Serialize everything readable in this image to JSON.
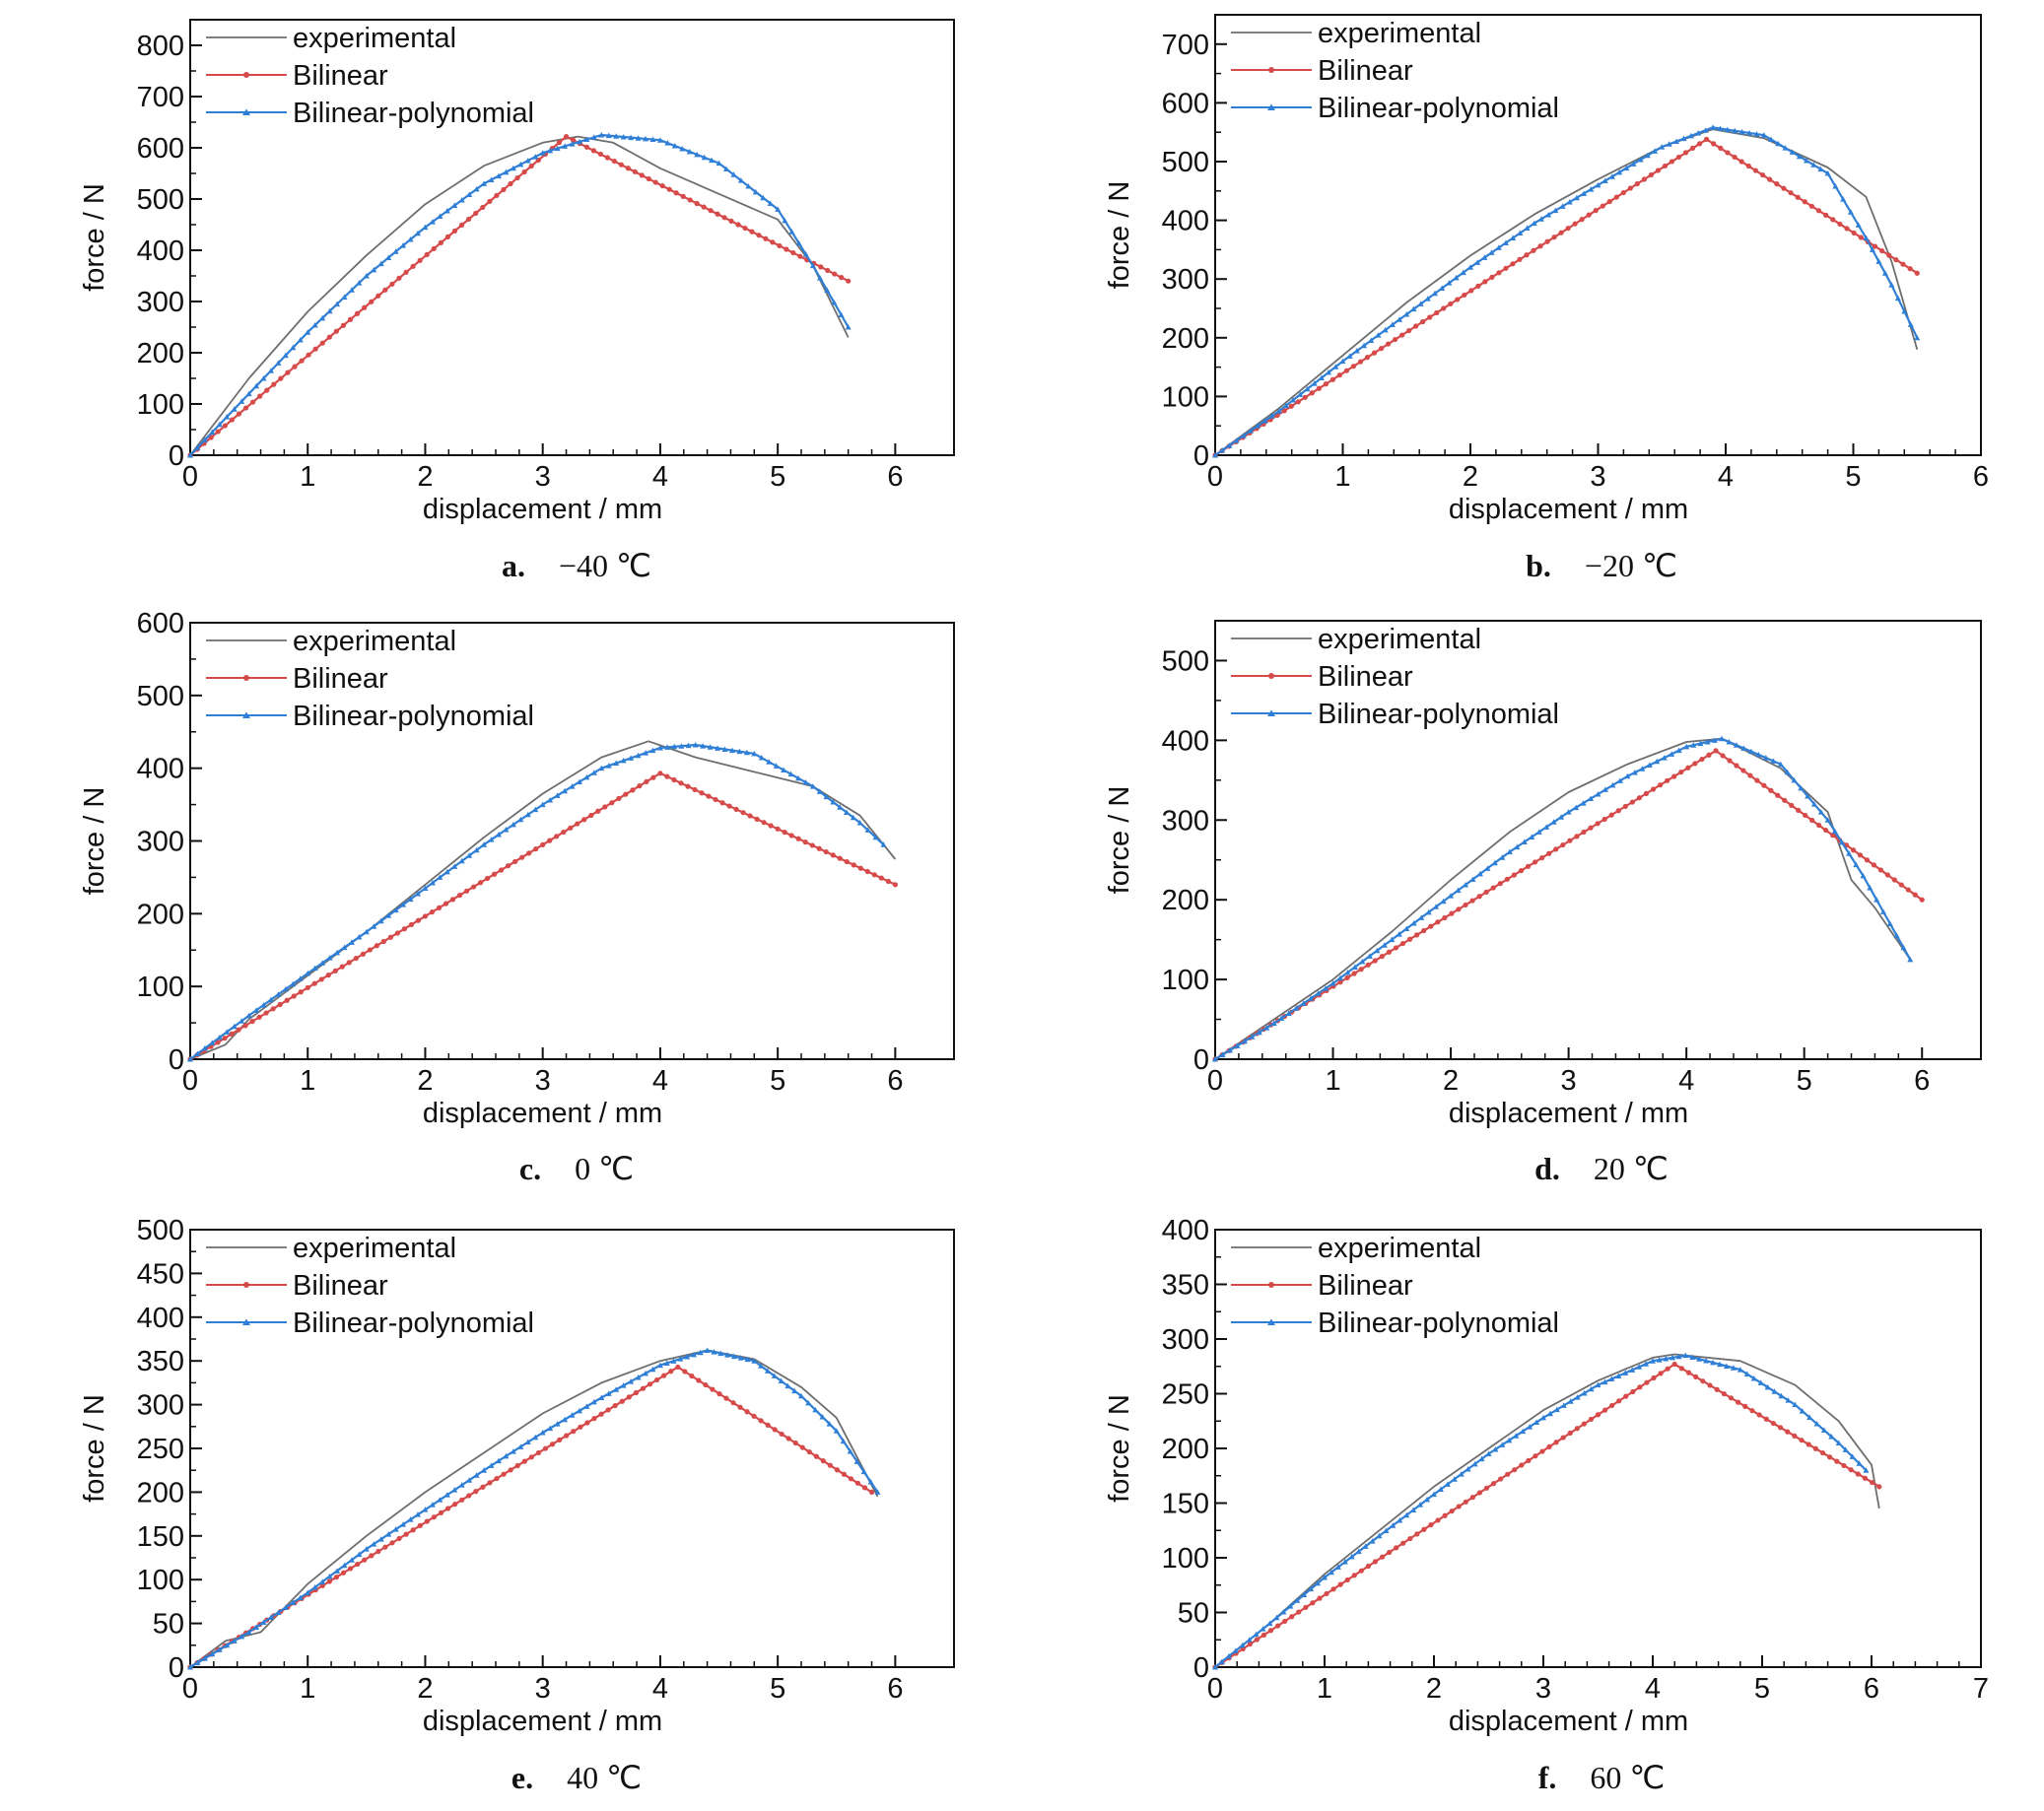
{
  "colors": {
    "experimental": "#6e6e6e",
    "bilinear": "#d64a4a",
    "bilinear_polynomial": "#2f7fd6",
    "axis": "#111111"
  },
  "chart_data": [
    {
      "id": "a",
      "caption_label": "a.",
      "caption_temp": "−40 ℃",
      "type": "line",
      "xlabel": "displacement / mm",
      "ylabel": "force / N",
      "xlim": [
        0,
        6.5
      ],
      "ylim": [
        0,
        850
      ],
      "xticks": [
        0,
        1,
        2,
        3,
        4,
        5,
        6
      ],
      "yticks": [
        0,
        100,
        200,
        300,
        400,
        500,
        600,
        700,
        800
      ],
      "grid": false,
      "legend_position": "top-left",
      "series": [
        {
          "name": "experimental",
          "x": [
            0,
            0.5,
            1,
            1.5,
            2,
            2.5,
            3,
            3.3,
            3.6,
            4,
            4.5,
            5,
            5.3,
            5.6
          ],
          "y": [
            0,
            150,
            280,
            390,
            490,
            565,
            610,
            622,
            610,
            560,
            510,
            460,
            370,
            230
          ]
        },
        {
          "name": "Bilinear",
          "x": [
            0,
            3.2,
            5.6
          ],
          "y": [
            0,
            622,
            340
          ]
        },
        {
          "name": "Bilinear-polynomial",
          "x": [
            0,
            0.5,
            1,
            1.5,
            2,
            2.5,
            3,
            3.5,
            4,
            4.5,
            5,
            5.3,
            5.6
          ],
          "y": [
            0,
            120,
            240,
            350,
            445,
            530,
            590,
            625,
            615,
            570,
            480,
            370,
            250
          ]
        }
      ]
    },
    {
      "id": "b",
      "caption_label": "b.",
      "caption_temp": "−20 ℃",
      "type": "line",
      "xlabel": "displacement / mm",
      "ylabel": "force / N",
      "xlim": [
        0,
        6
      ],
      "ylim": [
        0,
        750
      ],
      "xticks": [
        0,
        1,
        2,
        3,
        4,
        5,
        6
      ],
      "yticks": [
        0,
        100,
        200,
        300,
        400,
        500,
        600,
        700
      ],
      "grid": false,
      "legend_position": "top-left",
      "series": [
        {
          "name": "experimental",
          "x": [
            0,
            0.5,
            1,
            1.5,
            2,
            2.5,
            3,
            3.5,
            3.9,
            4.3,
            4.8,
            5.1,
            5.3,
            5.5
          ],
          "y": [
            0,
            80,
            170,
            260,
            340,
            410,
            470,
            525,
            555,
            540,
            490,
            440,
            330,
            180
          ]
        },
        {
          "name": "Bilinear",
          "x": [
            0,
            3.85,
            5.5
          ],
          "y": [
            0,
            538,
            310
          ]
        },
        {
          "name": "Bilinear-polynomial",
          "x": [
            0,
            0.5,
            1,
            1.5,
            2,
            2.5,
            3,
            3.5,
            3.9,
            4.3,
            4.8,
            5.1,
            5.3,
            5.5
          ],
          "y": [
            0,
            75,
            160,
            240,
            320,
            395,
            460,
            525,
            558,
            545,
            480,
            370,
            290,
            200
          ]
        }
      ]
    },
    {
      "id": "c",
      "caption_label": "c.",
      "caption_temp": "0 ℃",
      "type": "line",
      "xlabel": "displacement / mm",
      "ylabel": "force / N",
      "xlim": [
        0,
        6.5
      ],
      "ylim": [
        0,
        600
      ],
      "xticks": [
        0,
        1,
        2,
        3,
        4,
        5,
        6
      ],
      "yticks": [
        0,
        100,
        200,
        300,
        400,
        500,
        600
      ],
      "grid": false,
      "legend_position": "top-left",
      "series": [
        {
          "name": "experimental",
          "x": [
            0,
            0.3,
            0.5,
            1,
            1.5,
            2,
            2.5,
            3,
            3.5,
            3.9,
            4.3,
            4.8,
            5.3,
            5.7,
            6
          ],
          "y": [
            0,
            20,
            55,
            115,
            175,
            240,
            305,
            365,
            415,
            437,
            415,
            395,
            375,
            335,
            275
          ]
        },
        {
          "name": "Bilinear",
          "x": [
            0,
            4,
            6
          ],
          "y": [
            0,
            393,
            240
          ]
        },
        {
          "name": "Bilinear-polynomial",
          "x": [
            0,
            0.5,
            1,
            1.5,
            2,
            2.5,
            3,
            3.5,
            4,
            4.3,
            4.8,
            5.3,
            5.7,
            5.9
          ],
          "y": [
            0,
            60,
            118,
            175,
            235,
            295,
            350,
            400,
            428,
            432,
            420,
            375,
            325,
            295
          ]
        }
      ]
    },
    {
      "id": "d",
      "caption_label": "d.",
      "caption_temp": "20 ℃",
      "type": "line",
      "xlabel": "displacement / mm",
      "ylabel": "force / N",
      "xlim": [
        0,
        6.5
      ],
      "ylim": [
        0,
        550
      ],
      "xticks": [
        0,
        1,
        2,
        3,
        4,
        5,
        6
      ],
      "yticks": [
        0,
        100,
        200,
        300,
        400,
        500
      ],
      "grid": false,
      "legend_position": "top-left",
      "series": [
        {
          "name": "experimental",
          "x": [
            0,
            0.5,
            1,
            1.5,
            2,
            2.5,
            3,
            3.5,
            4,
            4.3,
            4.8,
            5.2,
            5.4,
            5.6,
            5.9
          ],
          "y": [
            0,
            50,
            100,
            160,
            225,
            285,
            335,
            370,
            398,
            402,
            365,
            310,
            225,
            190,
            125
          ]
        },
        {
          "name": "Bilinear",
          "x": [
            0,
            4.25,
            6
          ],
          "y": [
            0,
            387,
            200
          ]
        },
        {
          "name": "Bilinear-polynomial",
          "x": [
            0,
            0.5,
            1,
            1.5,
            2,
            2.5,
            3,
            3.5,
            4,
            4.3,
            4.8,
            5.2,
            5.5,
            5.9
          ],
          "y": [
            0,
            45,
            95,
            150,
            205,
            260,
            310,
            355,
            392,
            402,
            370,
            300,
            230,
            125
          ]
        }
      ]
    },
    {
      "id": "e",
      "caption_label": "e.",
      "caption_temp": "40 ℃",
      "type": "line",
      "xlabel": "displacement / mm",
      "ylabel": "force / N",
      "xlim": [
        0,
        6.5
      ],
      "ylim": [
        0,
        500
      ],
      "xticks": [
        0,
        1,
        2,
        3,
        4,
        5,
        6
      ],
      "yticks": [
        0,
        50,
        100,
        150,
        200,
        250,
        300,
        350,
        400,
        450,
        500
      ],
      "grid": false,
      "legend_position": "top-left",
      "series": [
        {
          "name": "experimental",
          "x": [
            0,
            0.3,
            0.6,
            1,
            1.5,
            2,
            2.5,
            3,
            3.5,
            4,
            4.4,
            4.8,
            5.2,
            5.5,
            5.85
          ],
          "y": [
            0,
            30,
            40,
            95,
            150,
            200,
            245,
            290,
            325,
            350,
            362,
            352,
            320,
            285,
            195
          ]
        },
        {
          "name": "Bilinear",
          "x": [
            0,
            4.15,
            5.8
          ],
          "y": [
            0,
            343,
            200
          ]
        },
        {
          "name": "Bilinear-polynomial",
          "x": [
            0,
            0.5,
            1,
            1.5,
            2,
            2.5,
            3,
            3.5,
            4,
            4.4,
            4.8,
            5.2,
            5.5,
            5.85
          ],
          "y": [
            0,
            40,
            85,
            135,
            180,
            225,
            268,
            308,
            345,
            362,
            350,
            310,
            270,
            200
          ]
        }
      ]
    },
    {
      "id": "f",
      "caption_label": "f.",
      "caption_temp": "60 ℃",
      "type": "line",
      "xlabel": "displacement / mm",
      "ylabel": "force / N",
      "xlim": [
        0,
        7
      ],
      "ylim": [
        0,
        400
      ],
      "xticks": [
        0,
        1,
        2,
        3,
        4,
        5,
        6,
        7
      ],
      "yticks": [
        0,
        50,
        100,
        150,
        200,
        250,
        300,
        350,
        400
      ],
      "grid": false,
      "legend_position": "top-left",
      "series": [
        {
          "name": "experimental",
          "x": [
            0,
            0.5,
            1,
            1.5,
            2,
            2.5,
            3,
            3.5,
            4,
            4.2,
            4.8,
            5.3,
            5.7,
            6,
            6.07
          ],
          "y": [
            0,
            40,
            85,
            125,
            165,
            200,
            235,
            262,
            283,
            286,
            280,
            258,
            225,
            185,
            145
          ]
        },
        {
          "name": "Bilinear",
          "x": [
            0,
            4.2,
            6.07
          ],
          "y": [
            0,
            277,
            165
          ]
        },
        {
          "name": "Bilinear-polynomial",
          "x": [
            0,
            0.5,
            1,
            1.5,
            2,
            2.5,
            3,
            3.5,
            4,
            4.3,
            4.8,
            5.3,
            5.7,
            5.95
          ],
          "y": [
            0,
            40,
            82,
            120,
            158,
            195,
            228,
            258,
            280,
            285,
            272,
            240,
            205,
            180
          ]
        }
      ]
    }
  ]
}
